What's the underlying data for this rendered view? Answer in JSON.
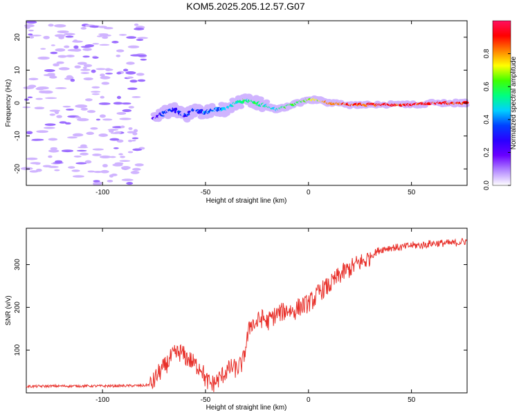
{
  "chart_data": [
    {
      "type": "heatmap",
      "title": "KOM5.2025.205.12.57.G07",
      "xlabel": "Height of straight line (km)",
      "ylabel": "Frequency (Hz)",
      "xlim": [
        -137,
        77
      ],
      "ylim": [
        -25,
        25
      ],
      "xticks": [
        "-100",
        "-50",
        "0",
        "50"
      ],
      "xtick_values": [
        -100,
        -50,
        0,
        50
      ],
      "yticks": [
        "-20",
        "-10",
        "0",
        "10",
        "20"
      ],
      "ytick_values": [
        -20,
        -10,
        0,
        10,
        20
      ],
      "colorbar": {
        "label": "Normalized spectral amplitude",
        "ticks": [
          "0.0",
          "0.2",
          "0.4",
          "0.6",
          "0.8"
        ],
        "tick_values": [
          0.0,
          0.2,
          0.4,
          0.6,
          0.8
        ],
        "range": [
          0,
          1
        ],
        "colors": [
          "#ffffff",
          "#b388ff",
          "#6a00ff",
          "#2a00ff",
          "#0040ff",
          "#00d0ff",
          "#00ff80",
          "#40ff00",
          "#ffff00",
          "#ff8000",
          "#ff0000",
          "#ff1060"
        ]
      },
      "ridge": {
        "x": [
          -75,
          -70,
          -65,
          -60,
          -55,
          -50,
          -45,
          -40,
          -35,
          -30,
          -25,
          -20,
          -15,
          -10,
          -5,
          0,
          5,
          10,
          20,
          30,
          40,
          50,
          60,
          70,
          77
        ],
        "freq": [
          -5,
          -3,
          -2,
          -4,
          -2,
          -3,
          -2,
          -2,
          0,
          1,
          0,
          -1,
          -2,
          -1,
          0,
          1,
          1,
          0,
          -0.5,
          -0.5,
          -0.5,
          -0.5,
          0,
          0,
          0
        ],
        "amp": [
          0.2,
          0.3,
          0.35,
          0.3,
          0.35,
          0.35,
          0.4,
          0.45,
          0.5,
          0.55,
          0.55,
          0.5,
          0.5,
          0.55,
          0.6,
          0.65,
          0.7,
          0.8,
          0.85,
          0.9,
          0.9,
          0.92,
          0.92,
          0.9,
          0.9
        ]
      },
      "noise_region_x": [
        -137,
        -80
      ]
    },
    {
      "type": "line",
      "title": "",
      "xlabel": "Height of straight line (km)",
      "ylabel": "SNR (v/v)",
      "xlim": [
        -137,
        77
      ],
      "ylim": [
        0,
        385
      ],
      "xticks": [
        "-100",
        "-50",
        "0",
        "50"
      ],
      "xtick_values": [
        -100,
        -50,
        0,
        50
      ],
      "yticks": [
        "100",
        "200",
        "300"
      ],
      "ytick_values": [
        100,
        200,
        300
      ],
      "color": "#e8302a",
      "series": [
        {
          "x": [
            -137,
            -120,
            -100,
            -80,
            -76,
            -73,
            -70,
            -67,
            -65,
            -62,
            -60,
            -57,
            -55,
            -52,
            -50,
            -47,
            -45,
            -42,
            -40,
            -37,
            -35,
            -32,
            -30,
            -28,
            -26,
            -24,
            -22,
            -20,
            -18,
            -15,
            -12,
            -10,
            -7,
            -5,
            -2,
            0,
            3,
            5,
            8,
            10,
            13,
            15,
            18,
            20,
            23,
            25,
            28,
            30,
            33,
            35,
            40,
            45,
            50,
            55,
            60,
            65,
            70,
            77
          ],
          "y": [
            15,
            16,
            16,
            17,
            20,
            45,
            60,
            80,
            90,
            95,
            85,
            75,
            65,
            60,
            30,
            20,
            25,
            40,
            50,
            60,
            55,
            70,
            120,
            165,
            160,
            170,
            175,
            165,
            175,
            185,
            190,
            195,
            190,
            200,
            205,
            210,
            220,
            235,
            245,
            250,
            265,
            275,
            285,
            290,
            300,
            305,
            310,
            320,
            330,
            335,
            340,
            340,
            345,
            345,
            350,
            350,
            350,
            355
          ]
        }
      ]
    }
  ]
}
